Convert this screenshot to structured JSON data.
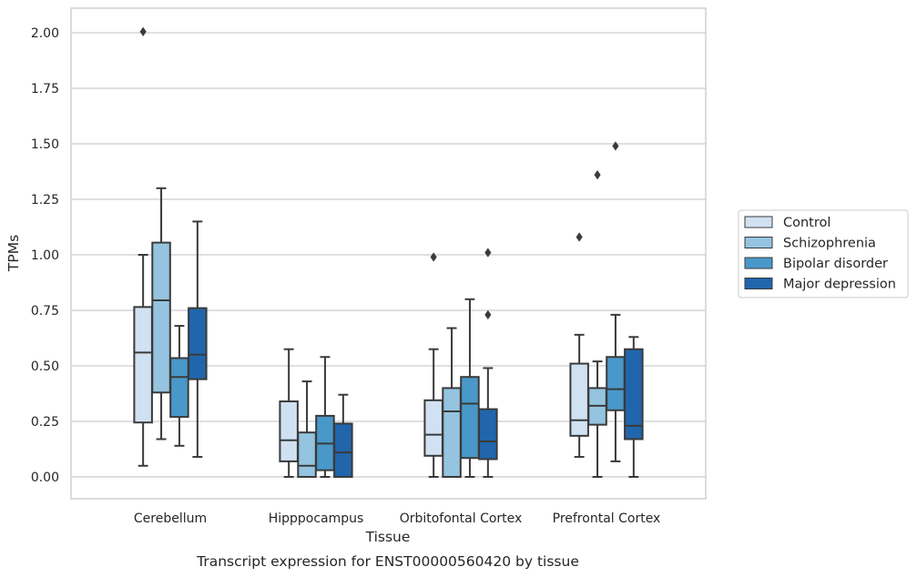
{
  "chart_data": {
    "type": "box",
    "xlabel": "Tissue",
    "ylabel": "TPMs",
    "caption": "Transcript expression for ENST00000560420 by tissue",
    "ylim": [
      -0.1,
      2.1
    ],
    "yticks": [
      0.0,
      0.25,
      0.5,
      0.75,
      1.0,
      1.25,
      1.5,
      1.75,
      2.0
    ],
    "ytick_labels": [
      "0.00",
      "0.25",
      "0.50",
      "0.75",
      "1.00",
      "1.25",
      "1.50",
      "1.75",
      "2.00"
    ],
    "grid": true,
    "legend_position": "right",
    "categories": [
      "Cerebellum",
      "Hipppocampus",
      "Orbitofontal Cortex",
      "Prefrontal Cortex"
    ],
    "series": [
      {
        "name": "Control",
        "color": "#d0e1f2",
        "boxes": [
          {
            "whisker_low": 0.05,
            "q1": 0.245,
            "median": 0.56,
            "q3": 0.765,
            "whisker_high": 1.0,
            "outliers": [
              2.005
            ]
          },
          {
            "whisker_low": 0.0,
            "q1": 0.07,
            "median": 0.165,
            "q3": 0.34,
            "whisker_high": 0.575,
            "outliers": []
          },
          {
            "whisker_low": 0.0,
            "q1": 0.095,
            "median": 0.19,
            "q3": 0.345,
            "whisker_high": 0.575,
            "outliers": [
              0.99
            ]
          },
          {
            "whisker_low": 0.09,
            "q1": 0.185,
            "median": 0.255,
            "q3": 0.51,
            "whisker_high": 0.64,
            "outliers": [
              1.08
            ]
          }
        ]
      },
      {
        "name": "Schizophrenia",
        "color": "#94c4df",
        "boxes": [
          {
            "whisker_low": 0.17,
            "q1": 0.38,
            "median": 0.795,
            "q3": 1.055,
            "whisker_high": 1.3,
            "outliers": []
          },
          {
            "whisker_low": 0.0,
            "q1": 0.0,
            "median": 0.05,
            "q3": 0.2,
            "whisker_high": 0.43,
            "outliers": []
          },
          {
            "whisker_low": 0.0,
            "q1": 0.0,
            "median": 0.295,
            "q3": 0.4,
            "whisker_high": 0.67,
            "outliers": []
          },
          {
            "whisker_low": 0.0,
            "q1": 0.235,
            "median": 0.32,
            "q3": 0.4,
            "whisker_high": 0.52,
            "outliers": [
              1.36
            ]
          }
        ]
      },
      {
        "name": "Bipolar disorder",
        "color": "#4a98c9",
        "boxes": [
          {
            "whisker_low": 0.14,
            "q1": 0.27,
            "median": 0.45,
            "q3": 0.535,
            "whisker_high": 0.68,
            "outliers": []
          },
          {
            "whisker_low": 0.0,
            "q1": 0.03,
            "median": 0.15,
            "q3": 0.275,
            "whisker_high": 0.54,
            "outliers": []
          },
          {
            "whisker_low": 0.0,
            "q1": 0.085,
            "median": 0.33,
            "q3": 0.45,
            "whisker_high": 0.8,
            "outliers": []
          },
          {
            "whisker_low": 0.07,
            "q1": 0.3,
            "median": 0.395,
            "q3": 0.54,
            "whisker_high": 0.73,
            "outliers": [
              1.49
            ]
          }
        ]
      },
      {
        "name": "Major depression",
        "color": "#2166ac",
        "boxes": [
          {
            "whisker_low": 0.09,
            "q1": 0.44,
            "median": 0.55,
            "q3": 0.76,
            "whisker_high": 1.15,
            "outliers": []
          },
          {
            "whisker_low": 0.0,
            "q1": 0.0,
            "median": 0.11,
            "q3": 0.24,
            "whisker_high": 0.37,
            "outliers": []
          },
          {
            "whisker_low": 0.0,
            "q1": 0.08,
            "median": 0.16,
            "q3": 0.305,
            "whisker_high": 0.49,
            "outliers": [
              0.73,
              1.01
            ]
          },
          {
            "whisker_low": 0.0,
            "q1": 0.17,
            "median": 0.23,
            "q3": 0.575,
            "whisker_high": 0.63,
            "outliers": []
          }
        ]
      }
    ]
  }
}
